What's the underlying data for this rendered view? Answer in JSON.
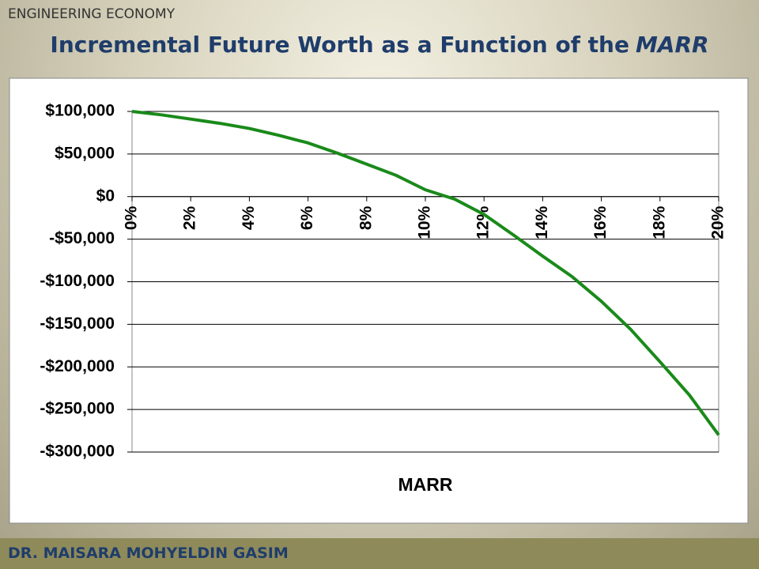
{
  "header": "ENGINEERING ECONOMY",
  "footer": "DR. MAISARA MOHYELDIN GASIM",
  "title_parts": [
    "Incremental Future Worth as a Function of the",
    "MARR"
  ],
  "chart_data": {
    "type": "line",
    "x_label": "MARR",
    "x": [
      0,
      1,
      2,
      3,
      4,
      5,
      6,
      7,
      8,
      9,
      10,
      11,
      12,
      13,
      14,
      15,
      16,
      17,
      18,
      19,
      20
    ],
    "series": [
      {
        "color": "#1a8a1a",
        "values": [
          100000,
          96000,
          91000,
          86000,
          80000,
          72000,
          63000,
          51000,
          38000,
          25000,
          8000,
          -3000,
          -21000,
          -45000,
          -70000,
          -94000,
          -123000,
          -156000,
          -194000,
          -233000,
          -280000
        ]
      }
    ],
    "xlim": [
      0,
      20
    ],
    "ylim": [
      -300000,
      100000
    ],
    "xticks": [
      {
        "value": 0,
        "label": "0%"
      },
      {
        "value": 2,
        "label": "2%"
      },
      {
        "value": 4,
        "label": "4%"
      },
      {
        "value": 6,
        "label": "6%"
      },
      {
        "value": 8,
        "label": "8%"
      },
      {
        "value": 10,
        "label": "10%"
      },
      {
        "value": 12,
        "label": "12%"
      },
      {
        "value": 14,
        "label": "14%"
      },
      {
        "value": 16,
        "label": "16%"
      },
      {
        "value": 18,
        "label": "18%"
      },
      {
        "value": 20,
        "label": "20%"
      }
    ],
    "yticks": [
      {
        "value": 100000,
        "label": "$100,000"
      },
      {
        "value": 50000,
        "label": "$50,000"
      },
      {
        "value": 0,
        "label": "$0"
      },
      {
        "value": -50000,
        "label": "-$50,000"
      },
      {
        "value": -100000,
        "label": "-$100,000"
      },
      {
        "value": -150000,
        "label": "-$150,000"
      },
      {
        "value": -200000,
        "label": "-$200,000"
      },
      {
        "value": -250000,
        "label": "-$250,000"
      },
      {
        "value": -300000,
        "label": "-$300,000"
      }
    ],
    "grid": true
  }
}
